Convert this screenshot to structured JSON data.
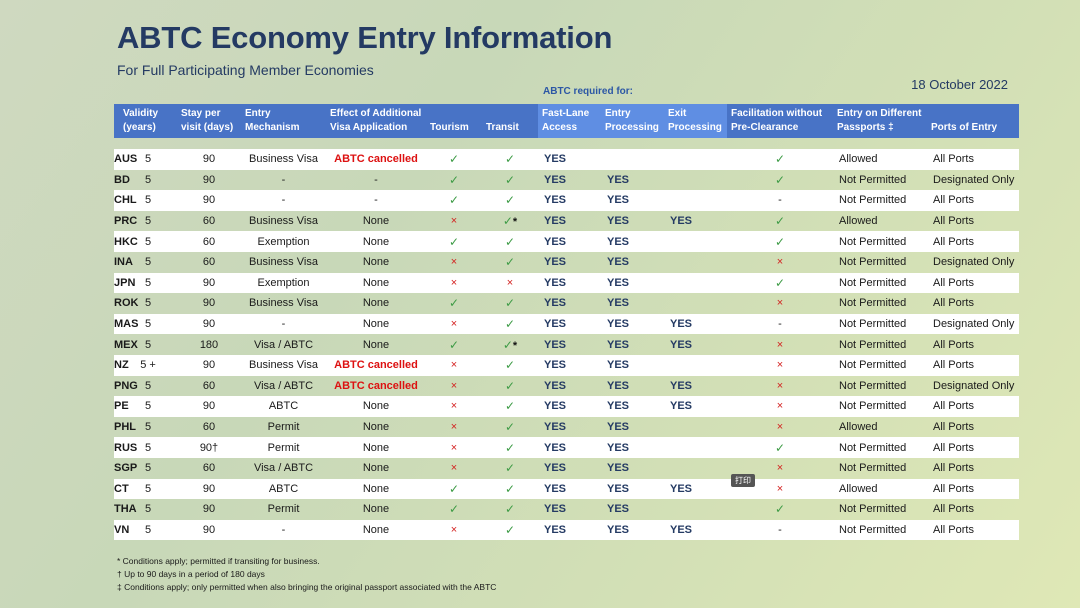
{
  "title": "ABTC Economy Entry Information",
  "subtitle": "For Full Participating Member Economies",
  "date": "18 October 2022",
  "abtc_required_label": "ABTC required for:",
  "popup_label": "打印",
  "headers": [
    "",
    "Validity (years)",
    "Stay per visit (days)",
    "Entry Mechanism",
    "Effect of Additional Visa Application",
    "Tourism",
    "Transit",
    "Fast-Lane Access",
    "Entry Processing",
    "Exit Processing",
    "Facilitation without Pre-Clearance",
    "Entry on Different Passports ‡",
    "Ports of Entry"
  ],
  "symbols": {
    "check": "✓",
    "cross": "×",
    "dash": "-"
  },
  "rows": [
    {
      "code": "AUS",
      "validity": "5",
      "stay": "90",
      "mechanism": "Business Visa",
      "effect": "ABTC cancelled",
      "tourism": "✓",
      "transit": "✓",
      "fast": "YES",
      "entry": "",
      "exit": "",
      "facil": "✓",
      "passports": "Allowed",
      "ports": "All Ports"
    },
    {
      "code": "BD",
      "validity": "5",
      "stay": "90",
      "mechanism": "-",
      "effect": "-",
      "tourism": "✓",
      "transit": "✓",
      "fast": "YES",
      "entry": "YES",
      "exit": "",
      "facil": "✓",
      "passports": "Not Permitted",
      "ports": "Designated Only"
    },
    {
      "code": "CHL",
      "validity": "5",
      "stay": "90",
      "mechanism": "-",
      "effect": "-",
      "tourism": "✓",
      "transit": "✓",
      "fast": "YES",
      "entry": "YES",
      "exit": "",
      "facil": "-",
      "passports": "Not Permitted",
      "ports": "All Ports"
    },
    {
      "code": "PRC",
      "validity": "5",
      "stay": "60",
      "mechanism": "Business Visa",
      "effect": "None",
      "tourism": "×",
      "transit": "✓*",
      "fast": "YES",
      "entry": "YES",
      "exit": "YES",
      "facil": "✓",
      "passports": "Allowed",
      "ports": "All Ports"
    },
    {
      "code": "HKC",
      "validity": "5",
      "stay": "60",
      "mechanism": "Exemption",
      "effect": "None",
      "tourism": "✓",
      "transit": "✓",
      "fast": "YES",
      "entry": "YES",
      "exit": "",
      "facil": "✓",
      "passports": "Not Permitted",
      "ports": "All Ports"
    },
    {
      "code": "INA",
      "validity": "5",
      "stay": "60",
      "mechanism": "Business Visa",
      "effect": "None",
      "tourism": "×",
      "transit": "✓",
      "fast": "YES",
      "entry": "YES",
      "exit": "",
      "facil": "×",
      "passports": "Not Permitted",
      "ports": "Designated Only"
    },
    {
      "code": "JPN",
      "validity": "5",
      "stay": "90",
      "mechanism": "Exemption",
      "effect": "None",
      "tourism": "×",
      "transit": "×",
      "fast": "YES",
      "entry": "YES",
      "exit": "",
      "facil": "✓",
      "passports": "Not Permitted",
      "ports": "All Ports"
    },
    {
      "code": "ROK",
      "validity": "5",
      "stay": "90",
      "mechanism": "Business Visa",
      "effect": "None",
      "tourism": "✓",
      "transit": "✓",
      "fast": "YES",
      "entry": "YES",
      "exit": "",
      "facil": "×",
      "passports": "Not Permitted",
      "ports": "All Ports"
    },
    {
      "code": "MAS",
      "validity": "5",
      "stay": "90",
      "mechanism": "-",
      "effect": "None",
      "tourism": "×",
      "transit": "✓",
      "fast": "YES",
      "entry": "YES",
      "exit": "YES",
      "facil": "-",
      "passports": "Not Permitted",
      "ports": "Designated Only"
    },
    {
      "code": "MEX",
      "validity": "5",
      "stay": "180",
      "mechanism": "Visa / ABTC",
      "effect": "None",
      "tourism": "✓",
      "transit": "✓*",
      "fast": "YES",
      "entry": "YES",
      "exit": "YES",
      "facil": "×",
      "passports": "Not Permitted",
      "ports": "All Ports"
    },
    {
      "code": "NZ",
      "validity": "5 +",
      "stay": "90",
      "mechanism": "Business Visa",
      "effect": "ABTC cancelled",
      "tourism": "×",
      "transit": "✓",
      "fast": "YES",
      "entry": "YES",
      "exit": "",
      "facil": "×",
      "passports": "Not Permitted",
      "ports": "All Ports"
    },
    {
      "code": "PNG",
      "validity": "5",
      "stay": "60",
      "mechanism": "Visa / ABTC",
      "effect": "ABTC cancelled",
      "tourism": "×",
      "transit": "✓",
      "fast": "YES",
      "entry": "YES",
      "exit": "YES",
      "facil": "×",
      "passports": "Not Permitted",
      "ports": "Designated Only"
    },
    {
      "code": "PE",
      "validity": "5",
      "stay": "90",
      "mechanism": "ABTC",
      "effect": "None",
      "tourism": "×",
      "transit": "✓",
      "fast": "YES",
      "entry": "YES",
      "exit": "YES",
      "facil": "×",
      "passports": "Not Permitted",
      "ports": "All Ports"
    },
    {
      "code": "PHL",
      "validity": "5",
      "stay": "60",
      "mechanism": "Permit",
      "effect": "None",
      "tourism": "×",
      "transit": "✓",
      "fast": "YES",
      "entry": "YES",
      "exit": "",
      "facil": "×",
      "passports": "Allowed",
      "ports": "All Ports"
    },
    {
      "code": "RUS",
      "validity": "5",
      "stay": "90†",
      "mechanism": "Permit",
      "effect": "None",
      "tourism": "×",
      "transit": "✓",
      "fast": "YES",
      "entry": "YES",
      "exit": "",
      "facil": "✓",
      "passports": "Not Permitted",
      "ports": "All Ports"
    },
    {
      "code": "SGP",
      "validity": "5",
      "stay": "60",
      "mechanism": "Visa / ABTC",
      "effect": "None",
      "tourism": "×",
      "transit": "✓",
      "fast": "YES",
      "entry": "YES",
      "exit": "",
      "facil": "×",
      "passports": "Not Permitted",
      "ports": "All Ports"
    },
    {
      "code": "CT",
      "validity": "5",
      "stay": "90",
      "mechanism": "ABTC",
      "effect": "None",
      "tourism": "✓",
      "transit": "✓",
      "fast": "YES",
      "entry": "YES",
      "exit": "YES",
      "facil": "×",
      "passports": "Allowed",
      "ports": "All Ports"
    },
    {
      "code": "THA",
      "validity": "5",
      "stay": "90",
      "mechanism": "Permit",
      "effect": "None",
      "tourism": "✓",
      "transit": "✓",
      "fast": "YES",
      "entry": "YES",
      "exit": "",
      "facil": "✓",
      "passports": "Not Permitted",
      "ports": "All Ports"
    },
    {
      "code": "VN",
      "validity": "5",
      "stay": "90",
      "mechanism": "-",
      "effect": "None",
      "tourism": "×",
      "transit": "✓",
      "fast": "YES",
      "entry": "YES",
      "exit": "YES",
      "facil": "-",
      "passports": "Not Permitted",
      "ports": "All Ports"
    }
  ],
  "footnotes": [
    "* Conditions apply; permitted if transiting for business.",
    "† Up to 90 days in a period of 180 days",
    "‡ Conditions apply; only permitted when also bringing the original passport associated with the ABTC"
  ],
  "colors": {
    "header": "#4873c6",
    "header_abtc": "#5f8ee3",
    "title": "#243a63",
    "check": "#3d9b45",
    "cross": "#d4201f",
    "cancelled": "#dd1111"
  }
}
